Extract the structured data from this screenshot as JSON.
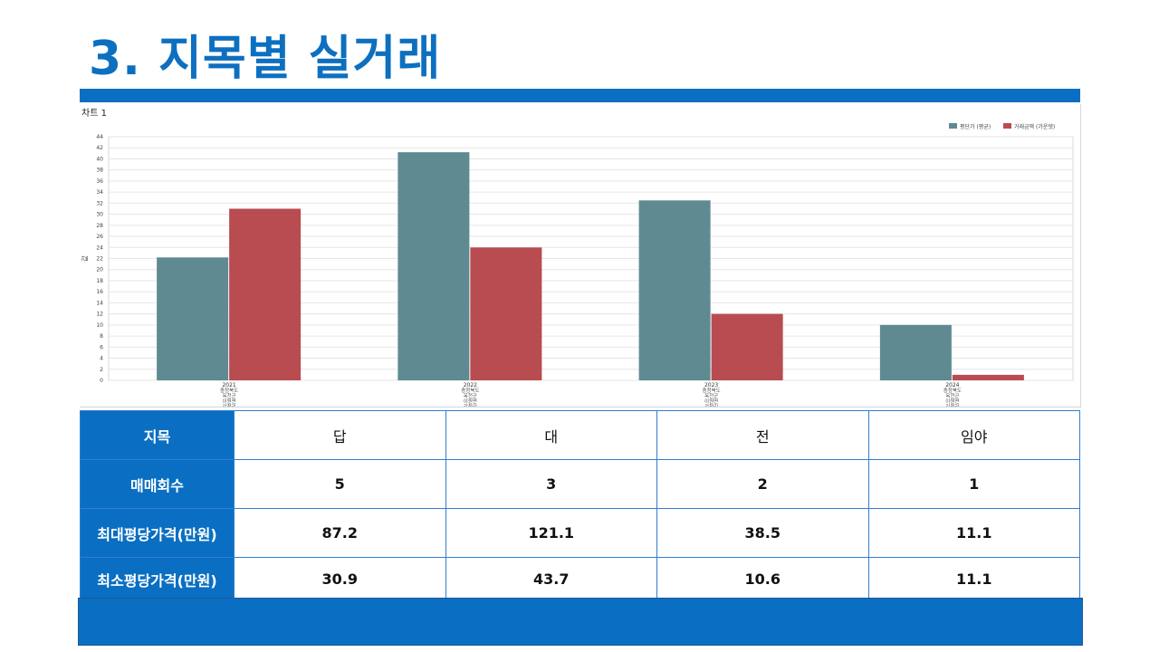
{
  "title": "3. 지목별 실거래",
  "chart_name": "차트 1",
  "colors": {
    "accent": "#0a6fc2",
    "series1": "#5f8a92",
    "series2": "#b84c51",
    "grid": "#e6e6e6"
  },
  "chart_data": {
    "type": "bar",
    "categories": [
      "2021",
      "2022",
      "2023",
      "2024"
    ],
    "category_sublabels": [
      [
        "충청북도",
        "옥천군",
        "이원면",
        "강청리"
      ],
      [
        "충청북도",
        "옥천군",
        "이원면",
        "강청리"
      ],
      [
        "충청북도",
        "옥천군",
        "이원면",
        "강청리"
      ],
      [
        "충청북도",
        "옥천군",
        "이원면",
        "강청리"
      ]
    ],
    "series": [
      {
        "name": "평단가 (평균)",
        "values": [
          22.2,
          41.2,
          32.5,
          10.0
        ]
      },
      {
        "name": "거래금액 (가운뎃)",
        "values": [
          31.0,
          24.0,
          12.0,
          1.0
        ]
      }
    ],
    "ylabel": "값",
    "ylim": [
      0,
      44
    ],
    "yticks": [
      0,
      2,
      4,
      6,
      8,
      10,
      12,
      14,
      16,
      18,
      20,
      22,
      24,
      26,
      28,
      30,
      32,
      34,
      36,
      38,
      40,
      42,
      44
    ],
    "grid": true,
    "legend": "top-right"
  },
  "table": {
    "header_label": "지목",
    "columns": [
      "답",
      "대",
      "전",
      "임야"
    ],
    "rows": [
      {
        "label": "매매회수",
        "values": [
          "5",
          "3",
          "2",
          "1"
        ]
      },
      {
        "label": "최대평당가격(만원)",
        "values": [
          "87.2",
          "121.1",
          "38.5",
          "11.1"
        ]
      },
      {
        "label": "최소평당가격(만원)",
        "values": [
          "30.9",
          "43.7",
          "10.6",
          "11.1"
        ]
      }
    ]
  }
}
